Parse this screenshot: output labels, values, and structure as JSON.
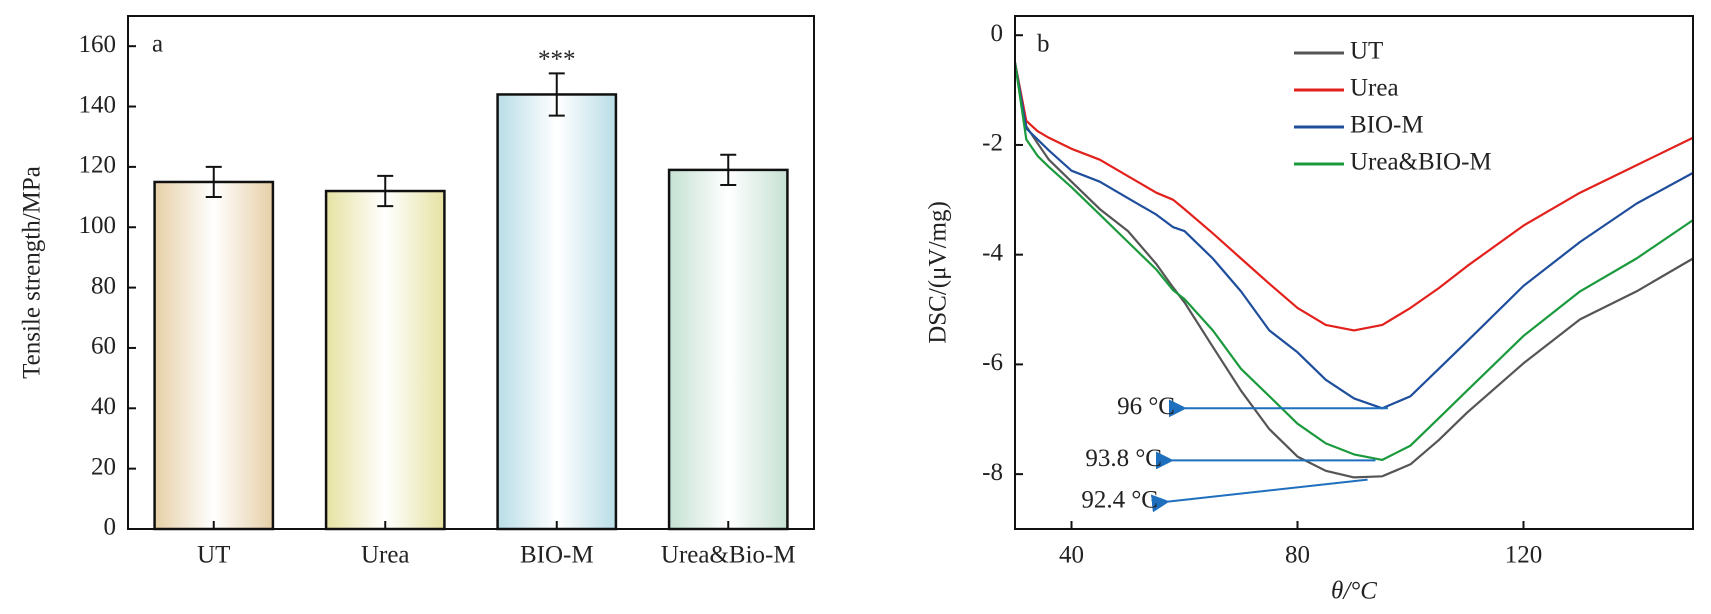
{
  "chart_data": [
    {
      "type": "bar",
      "panel": "a",
      "ylabel": "Tensile strength/MPa",
      "categories": [
        "UT",
        "Urea",
        "BIO-M",
        "Urea&Bio-M"
      ],
      "values": [
        115,
        112,
        144,
        119
      ],
      "errors": [
        5,
        5,
        7,
        5
      ],
      "colors": [
        "#e6cfa6",
        "#e6e2a2",
        "#b9dde7",
        "#c5e1d3"
      ],
      "ylim": [
        0,
        170
      ],
      "yticks": [
        0,
        20,
        40,
        60,
        80,
        100,
        120,
        140,
        160
      ],
      "annotations": [
        {
          "text": "***",
          "x": "BIO-M"
        }
      ]
    },
    {
      "type": "line",
      "panel": "b",
      "xlabel": "θ/°C",
      "ylabel": "DSC/(μV/mg)",
      "x": [
        30,
        32,
        34,
        36,
        40,
        45,
        50,
        55,
        58,
        60,
        65,
        70,
        75,
        80,
        85,
        90,
        95,
        100,
        105,
        110,
        120,
        130,
        140,
        150
      ],
      "series": [
        {
          "name": "UT",
          "color": "#555555",
          "values": [
            -0.5,
            -1.66,
            -1.97,
            -2.27,
            -2.67,
            -3.17,
            -3.57,
            -4.17,
            -4.6,
            -4.87,
            -5.68,
            -6.48,
            -7.18,
            -7.68,
            -7.94,
            -8.06,
            -8.04,
            -7.82,
            -7.38,
            -6.88,
            -5.98,
            -5.18,
            -4.67,
            -4.07
          ]
        },
        {
          "name": "Urea",
          "color": "#e3211c",
          "values": [
            -0.5,
            -1.56,
            -1.75,
            -1.87,
            -2.07,
            -2.27,
            -2.57,
            -2.87,
            -3.0,
            -3.17,
            -3.61,
            -4.07,
            -4.53,
            -4.97,
            -5.28,
            -5.38,
            -5.28,
            -4.97,
            -4.61,
            -4.21,
            -3.47,
            -2.87,
            -2.37,
            -1.87
          ]
        },
        {
          "name": "BIO-M",
          "color": "#1f4e9c",
          "values": [
            -0.5,
            -1.7,
            -1.9,
            -2.1,
            -2.47,
            -2.67,
            -2.97,
            -3.27,
            -3.5,
            -3.57,
            -4.07,
            -4.67,
            -5.38,
            -5.78,
            -6.28,
            -6.62,
            -6.8,
            -6.58,
            -6.08,
            -5.58,
            -4.57,
            -3.77,
            -3.07,
            -2.51
          ]
        },
        {
          "name": "Urea&BIO-M",
          "color": "#1a9a3c",
          "values": [
            -0.5,
            -1.9,
            -2.2,
            -2.4,
            -2.77,
            -3.27,
            -3.77,
            -4.27,
            -4.65,
            -4.81,
            -5.38,
            -6.08,
            -6.58,
            -7.08,
            -7.44,
            -7.64,
            -7.74,
            -7.48,
            -6.98,
            -6.48,
            -5.48,
            -4.67,
            -4.07,
            -3.37
          ]
        }
      ],
      "xlim": [
        30,
        150
      ],
      "xticks": [
        40,
        80,
        120
      ],
      "ylim": [
        -9,
        0.35
      ],
      "yticks": [
        0,
        -2,
        -4,
        -6,
        -8
      ],
      "legend": "upper center",
      "annotations": [
        {
          "text": "96 °C",
          "x": 96,
          "y": -6.8,
          "color": "#1f6fbf"
        },
        {
          "text": "93.8 °C",
          "x": 93.8,
          "y": -7.75,
          "color": "#1f6fbf"
        },
        {
          "text": "92.4 °C",
          "x": 92.4,
          "y": -8.1,
          "color": "#1f6fbf"
        }
      ]
    }
  ]
}
